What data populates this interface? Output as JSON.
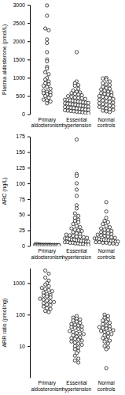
{
  "chart_data": [
    {
      "type": "strip",
      "y_label": "Plasma aldosterone (pmol/L)",
      "categories": [
        "Primary aldosteronism",
        "Essential hypertension",
        "Normal controls"
      ],
      "values": [
        [
          2980,
          2700,
          2350,
          2300,
          2050,
          1950,
          1700,
          1500,
          1450,
          1300,
          1250,
          1150,
          1100,
          1000,
          950,
          900,
          850,
          820,
          780,
          750,
          700,
          650,
          620,
          600,
          580,
          550,
          520,
          500,
          450,
          400,
          380,
          350,
          300
        ],
        [
          1700,
          900,
          850,
          800,
          780,
          700,
          650,
          620,
          600,
          580,
          560,
          540,
          520,
          500,
          480,
          460,
          450,
          440,
          420,
          400,
          390,
          380,
          370,
          360,
          350,
          340,
          330,
          320,
          310,
          300,
          290,
          280,
          270,
          260,
          250,
          240,
          230,
          220,
          210,
          200,
          190,
          180,
          170,
          160,
          150,
          140,
          130,
          120,
          110,
          100,
          90,
          80,
          70,
          60,
          50,
          40,
          30
        ],
        [
          1000,
          980,
          950,
          900,
          850,
          820,
          800,
          750,
          720,
          700,
          680,
          650,
          620,
          600,
          580,
          560,
          540,
          520,
          500,
          480,
          460,
          440,
          420,
          400,
          380,
          360,
          340,
          320,
          300,
          280,
          260,
          240,
          220,
          200,
          180,
          160,
          140,
          120,
          100,
          80,
          60
        ]
      ],
      "color": "#000000",
      "marker": "open-circle",
      "ylim": [
        0,
        3000
      ],
      "yticks": [
        0,
        500,
        1000,
        1500,
        2000,
        2500,
        3000
      ]
    },
    {
      "type": "strip",
      "y_label": "ARC (ng/L)",
      "categories": [
        "Primary aldosteronism",
        "Essential hypertension",
        "Normal controls"
      ],
      "values": [
        [
          3,
          3,
          2.5,
          2,
          2,
          2,
          2,
          2,
          1.5,
          1.5,
          1.5,
          1.5,
          1,
          1,
          1,
          1,
          1,
          1,
          1,
          1,
          1,
          1,
          1,
          1,
          1,
          1,
          1,
          1,
          1,
          1
        ],
        [
          170,
          115,
          112,
          100,
          90,
          80,
          65,
          60,
          52,
          48,
          45,
          42,
          40,
          38,
          35,
          32,
          30,
          28,
          26,
          25,
          24,
          22,
          20,
          19,
          18,
          17,
          16,
          15,
          15,
          14,
          13,
          12,
          12,
          11,
          10,
          10,
          9,
          9,
          8,
          8,
          7,
          7,
          6,
          6,
          5,
          5,
          4,
          4,
          3,
          3,
          2,
          2
        ],
        [
          70,
          55,
          45,
          40,
          38,
          35,
          32,
          30,
          28,
          26,
          25,
          24,
          22,
          21,
          20,
          19,
          18,
          17,
          16,
          15,
          14,
          13,
          12,
          12,
          11,
          10,
          10,
          9,
          9,
          8,
          8,
          7,
          7,
          6,
          6,
          5,
          5,
          4,
          4,
          3
        ]
      ],
      "color": "#000000",
      "marker": "open-circle",
      "ylim": [
        0,
        175
      ],
      "yticks": [
        0,
        25,
        50,
        75,
        100,
        125,
        150,
        175
      ]
    },
    {
      "type": "strip",
      "y_label": "ARR ratio (pmol/ng)",
      "categories": [
        "Primary aldosteronism",
        "Essential hypertension",
        "Normal controls"
      ],
      "values": [
        [
          2500,
          2000,
          1500,
          1200,
          1000,
          900,
          800,
          700,
          650,
          600,
          550,
          500,
          450,
          420,
          400,
          380,
          350,
          320,
          300,
          280,
          260,
          250,
          230,
          210,
          200,
          180,
          160,
          150,
          130,
          120
        ],
        [
          90,
          80,
          75,
          70,
          65,
          60,
          55,
          50,
          48,
          45,
          42,
          40,
          38,
          35,
          33,
          30,
          28,
          26,
          25,
          24,
          22,
          20,
          19,
          18,
          17,
          16,
          15,
          14,
          13,
          12,
          11,
          10,
          9,
          8,
          7,
          6,
          5,
          4,
          3.5,
          3
        ],
        [
          100,
          90,
          80,
          70,
          65,
          60,
          55,
          50,
          45,
          42,
          40,
          38,
          36,
          34,
          32,
          30,
          28,
          26,
          24,
          22,
          20,
          18,
          16,
          15,
          14,
          12,
          10,
          9,
          8,
          2
        ]
      ],
      "color": "#000000",
      "marker": "open-circle",
      "log": "y",
      "ylim": [
        1,
        3000
      ],
      "yticks": [
        10,
        100,
        1000
      ]
    }
  ]
}
